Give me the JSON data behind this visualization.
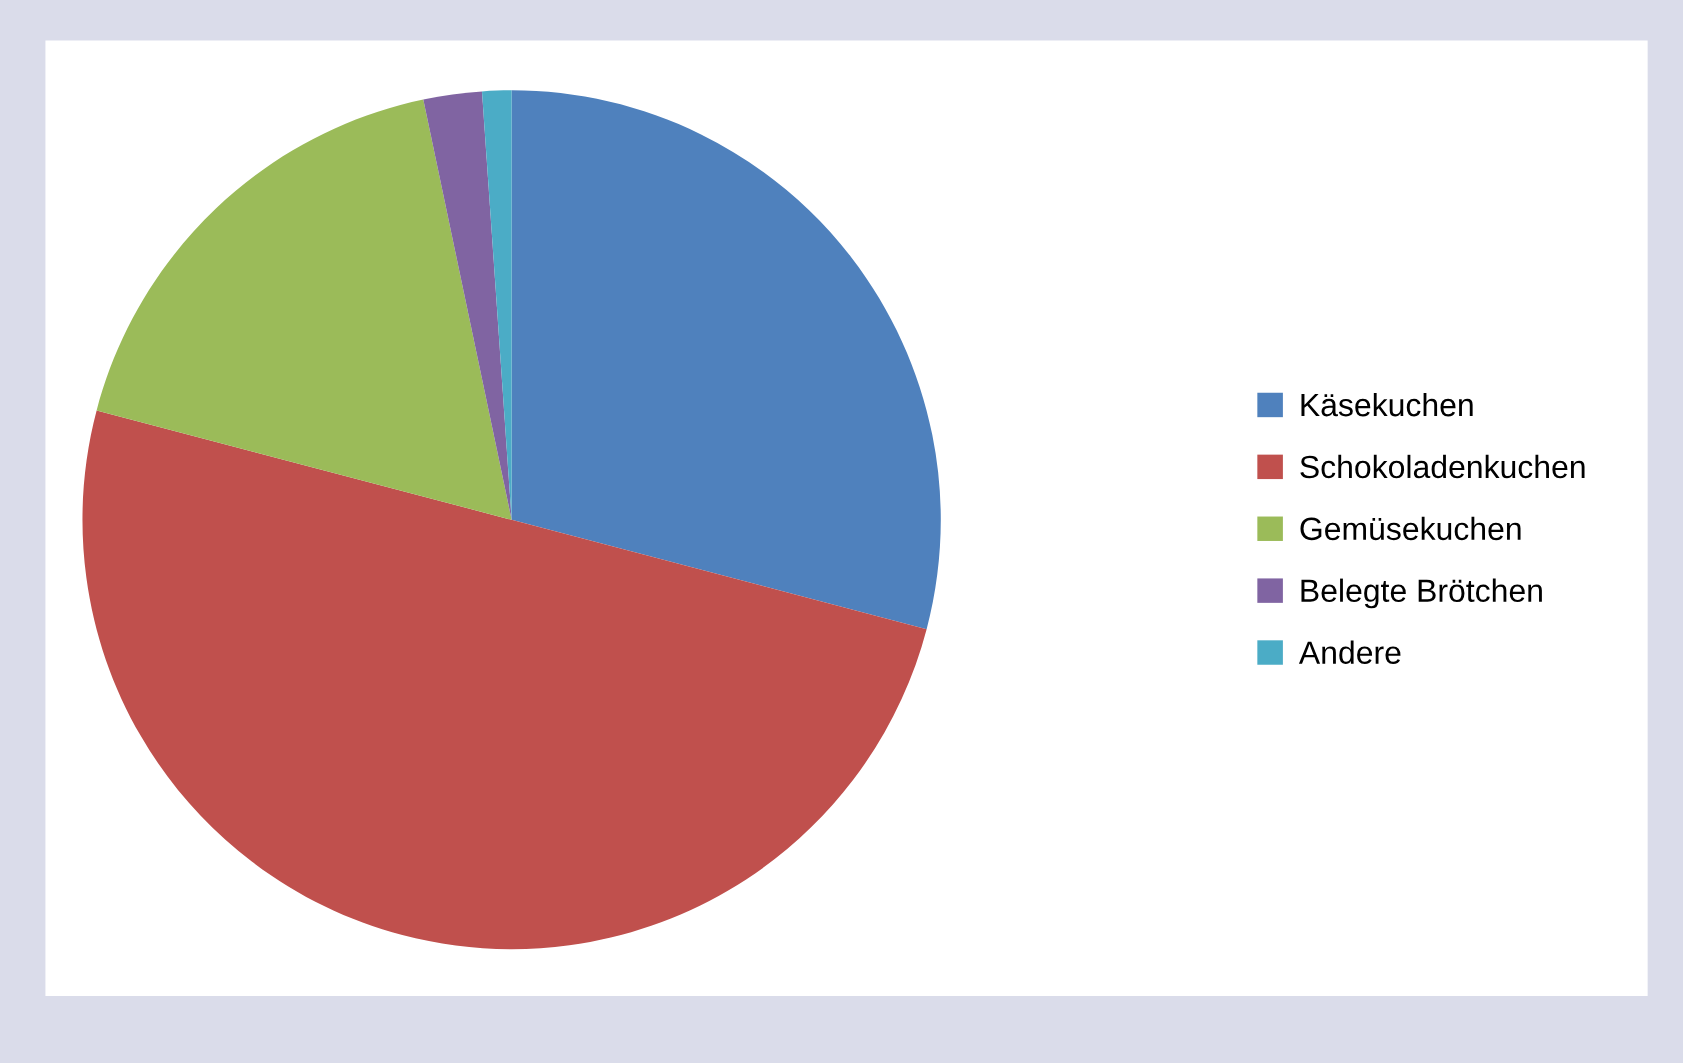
{
  "chart_data": {
    "type": "pie",
    "categories": [
      "Käsekuchen",
      "Schokoladenkuchen",
      "Gemüsekuchen",
      "Belegte Brötchen",
      "Andere"
    ],
    "values": [
      29.1,
      50.0,
      17.6,
      2.2,
      1.1
    ],
    "colors": [
      "#4f81bd",
      "#c0504d",
      "#9bbb59",
      "#8064a2",
      "#4bacc6"
    ],
    "legend": "right"
  }
}
